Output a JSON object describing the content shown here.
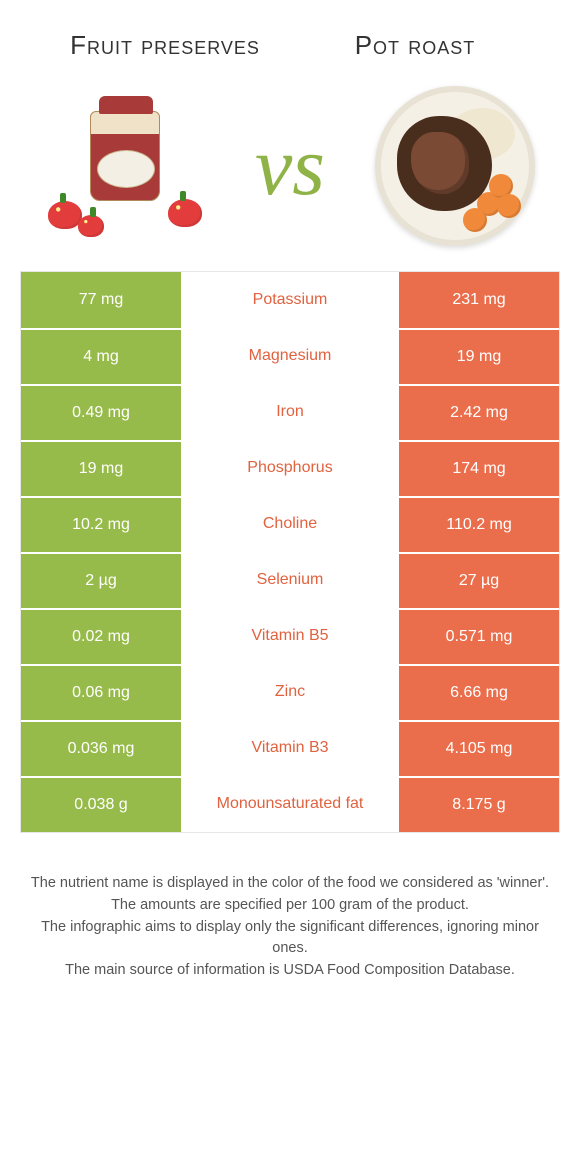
{
  "header": {
    "left_title": "Fruit preserves",
    "right_title": "Pot roast",
    "vs_label": "vs"
  },
  "colors": {
    "left_bar": "#97bb4a",
    "right_bar": "#ea6e4c",
    "left_text": "#89aa3f",
    "right_text": "#e0623f",
    "row_border": "#ffffff",
    "table_border": "#e7e7e7",
    "background": "#ffffff"
  },
  "comparison": {
    "type": "table",
    "columns": [
      "left_value",
      "nutrient",
      "right_value"
    ],
    "rows": [
      {
        "left": "77 mg",
        "label": "Potassium",
        "right": "231 mg",
        "winner": "right"
      },
      {
        "left": "4 mg",
        "label": "Magnesium",
        "right": "19 mg",
        "winner": "right"
      },
      {
        "left": "0.49 mg",
        "label": "Iron",
        "right": "2.42 mg",
        "winner": "right"
      },
      {
        "left": "19 mg",
        "label": "Phosphorus",
        "right": "174 mg",
        "winner": "right"
      },
      {
        "left": "10.2 mg",
        "label": "Choline",
        "right": "110.2 mg",
        "winner": "right"
      },
      {
        "left": "2 µg",
        "label": "Selenium",
        "right": "27 µg",
        "winner": "right"
      },
      {
        "left": "0.02 mg",
        "label": "Vitamin B5",
        "right": "0.571 mg",
        "winner": "right"
      },
      {
        "left": "0.06 mg",
        "label": "Zinc",
        "right": "6.66 mg",
        "winner": "right"
      },
      {
        "left": "0.036 mg",
        "label": "Vitamin B3",
        "right": "4.105 mg",
        "winner": "right"
      },
      {
        "left": "0.038 g",
        "label": "Monounsaturated fat",
        "right": "8.175 g",
        "winner": "right"
      }
    ]
  },
  "footer": {
    "line1": "The nutrient name is displayed in the color of the food we considered as 'winner'.",
    "line2": "The amounts are specified per 100 gram of the product.",
    "line3": "The infographic aims to display only the significant differences, ignoring minor ones.",
    "line4": "The main source of information is USDA Food Composition Database."
  }
}
